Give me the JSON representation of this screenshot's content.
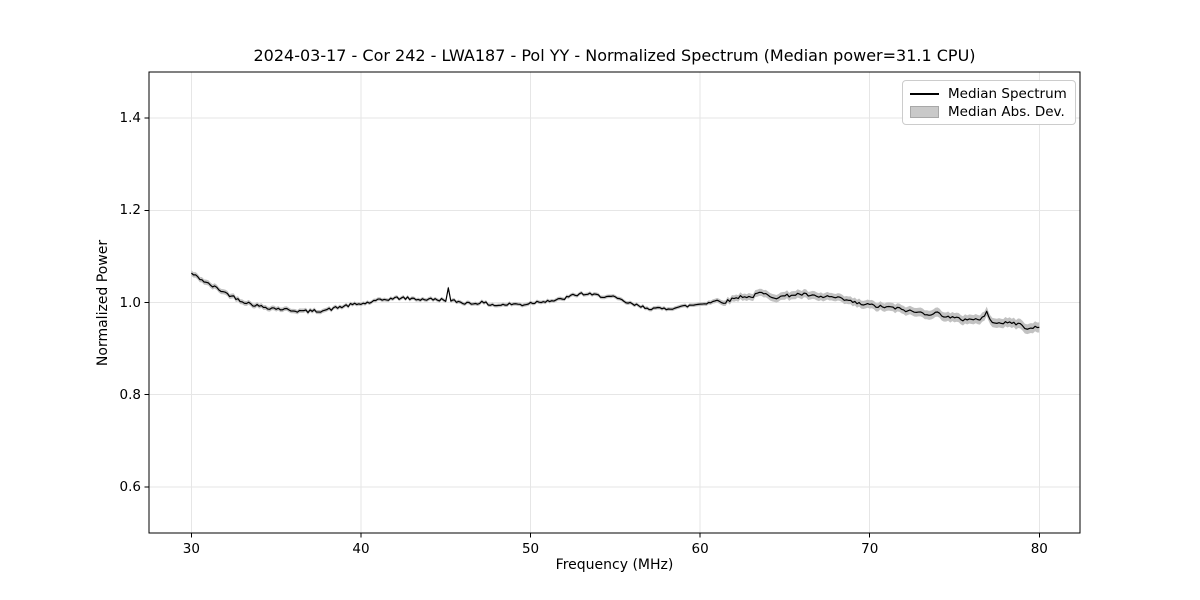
{
  "chart_data": {
    "type": "line",
    "title": "2024-03-17 - Cor 242 - LWA187 - Pol YY - Normalized Spectrum (Median power=31.1 CPU)",
    "xlabel": "Frequency (MHz)",
    "ylabel": "Normalized Power",
    "xlim": [
      27.5,
      82.4
    ],
    "ylim": [
      0.5,
      1.5
    ],
    "xticks": [
      30,
      40,
      50,
      60,
      70,
      80
    ],
    "xtick_labels": [
      "30",
      "40",
      "50",
      "60",
      "70",
      "80"
    ],
    "yticks": [
      0.6,
      0.8,
      1.0,
      1.2,
      1.4
    ],
    "ytick_labels": [
      "0.6",
      "0.8",
      "1.0",
      "1.2",
      "1.4"
    ],
    "grid": true,
    "legend": {
      "position": "upper right",
      "entries": [
        {
          "label": "Median Spectrum",
          "type": "line",
          "color": "#000000"
        },
        {
          "label": "Median Abs. Dev.",
          "type": "patch",
          "color": "#c9c9c9"
        }
      ]
    },
    "series": [
      {
        "name": "Median Spectrum",
        "type": "line",
        "color": "#000000",
        "x": [
          30,
          30.5,
          31,
          31.5,
          32,
          32.5,
          33,
          33.5,
          34,
          34.5,
          35,
          35.5,
          36,
          36.5,
          37,
          37.5,
          38,
          38.5,
          39,
          39.5,
          40,
          40.5,
          41,
          41.5,
          42,
          42.5,
          43,
          43.5,
          44,
          44.5,
          45,
          45.15,
          45.3,
          45.5,
          46,
          46.5,
          47,
          47.5,
          48,
          48.5,
          49,
          49.5,
          50,
          50.5,
          51,
          51.5,
          52,
          52.5,
          53,
          53.5,
          54,
          54.5,
          55,
          55.5,
          56,
          56.5,
          57,
          57.5,
          58,
          58.5,
          59,
          59.5,
          60,
          60.5,
          61,
          61.5,
          62,
          62.5,
          63,
          63.5,
          64,
          64.5,
          65,
          65.5,
          66,
          66.5,
          67,
          67.5,
          68,
          68.5,
          69,
          69.5,
          70,
          70.5,
          71,
          71.5,
          72,
          72.5,
          73,
          73.5,
          74,
          74.5,
          75,
          75.5,
          76,
          76.5,
          76.9,
          77.1,
          77.5,
          78,
          78.5,
          79,
          79.3,
          79.5,
          80
        ],
        "y": [
          1.063,
          1.052,
          1.04,
          1.031,
          1.021,
          1.012,
          1.003,
          0.997,
          0.992,
          0.989,
          0.987,
          0.985,
          0.983,
          0.981,
          0.981,
          0.982,
          0.984,
          0.988,
          0.992,
          0.995,
          0.997,
          1.0,
          1.004,
          1.007,
          1.009,
          1.01,
          1.008,
          1.007,
          1.007,
          1.006,
          1.006,
          1.03,
          1.002,
          1.003,
          1.0,
          0.998,
          1.0,
          0.997,
          0.994,
          0.995,
          0.997,
          0.995,
          0.999,
          1.002,
          1.004,
          1.004,
          1.009,
          1.015,
          1.019,
          1.017,
          1.015,
          1.013,
          1.01,
          1.002,
          0.996,
          0.991,
          0.988,
          0.986,
          0.987,
          0.989,
          0.991,
          0.994,
          0.997,
          1.0,
          1.004,
          1.001,
          1.009,
          1.014,
          1.011,
          1.021,
          1.016,
          1.011,
          1.014,
          1.017,
          1.018,
          1.015,
          1.011,
          1.013,
          1.01,
          1.006,
          1.001,
          0.996,
          0.995,
          0.991,
          0.99,
          0.988,
          0.984,
          0.98,
          0.978,
          0.975,
          0.977,
          0.97,
          0.966,
          0.963,
          0.965,
          0.962,
          0.979,
          0.96,
          0.958,
          0.955,
          0.956,
          0.951,
          0.94,
          0.947,
          0.946
        ]
      },
      {
        "name": "Median Abs. Dev.",
        "type": "band",
        "color": "#c9c9c9",
        "x": [
          30,
          35,
          40,
          45,
          50,
          55,
          60,
          61,
          62,
          64,
          66,
          68,
          70,
          72,
          74,
          76,
          78,
          80
        ],
        "halfwidth": [
          0.006,
          0.005,
          0.004,
          0.004,
          0.004,
          0.004,
          0.004,
          0.005,
          0.007,
          0.008,
          0.009,
          0.008,
          0.009,
          0.009,
          0.01,
          0.01,
          0.01,
          0.011
        ]
      }
    ],
    "style": {
      "line_color": "#000000",
      "band_color": "#c2c2c2",
      "grid_color": "#e6e6e6",
      "spine_color": "#000000",
      "background": "#ffffff",
      "jitter": 0.0035
    }
  }
}
